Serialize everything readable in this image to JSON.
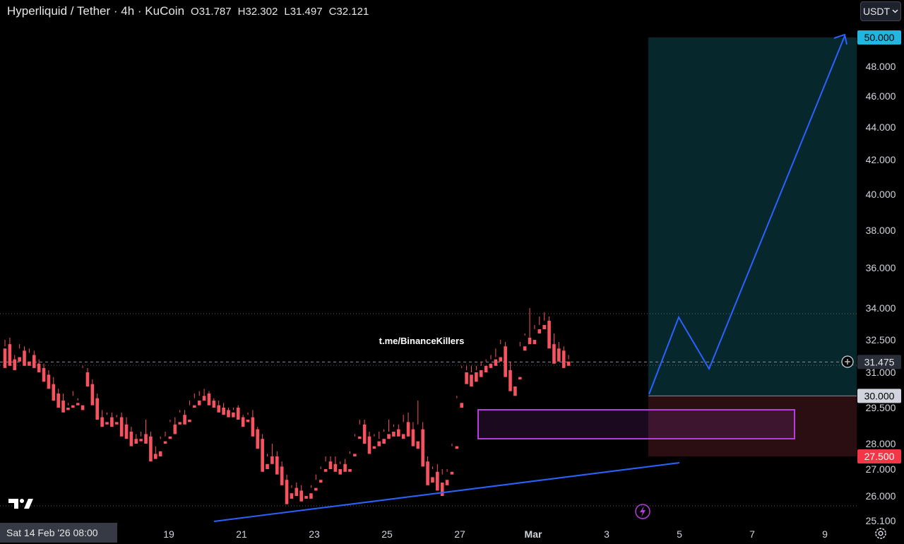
{
  "header": {
    "title": "Hyperliquid / Tether · 4h · KuCoin",
    "ohlc": [
      {
        "key": "O",
        "value": "31.787"
      },
      {
        "key": "H",
        "value": "32.302"
      },
      {
        "key": "L",
        "value": "31.497"
      },
      {
        "key": "C",
        "value": "32.121"
      }
    ]
  },
  "currency": {
    "label": "USDT",
    "icon": "chevron-down-icon"
  },
  "watermark": "t.me/BinanceKillers",
  "date_pill": "Sat 14 Feb '26   08:00",
  "icons": {
    "logo": "tradingview-logo",
    "settings": "gear-icon",
    "flash": "lightning-icon",
    "crosshair": "plus-circle-icon"
  },
  "colors": {
    "up": "#ffffff",
    "down": "#f7525f",
    "line": "#2962ff",
    "zone_border": "#b53ddb",
    "profit_zone": "#06272b",
    "loss_zone": "#2a0e12",
    "target_label": "#22b5e0",
    "stop_label": "#f23645"
  },
  "chart_data": {
    "type": "candlestick",
    "title": "Hyperliquid / Tether · 4h · KuCoin",
    "ylim": [
      25.1,
      50.5
    ],
    "y_ticks": [
      "25.100",
      "26.000",
      "27.000",
      "28.000",
      "29.500",
      "31.000",
      "32.500",
      "34.000",
      "36.000",
      "38.000",
      "40.000",
      "42.000",
      "44.000",
      "46.000",
      "48.000"
    ],
    "x_ticks": [
      "19",
      "21",
      "23",
      "25",
      "27",
      "Mar",
      "3",
      "5",
      "7",
      "9"
    ],
    "price_labels": [
      {
        "text": "50.000",
        "value": 50.0,
        "role": "target"
      },
      {
        "text": "31.475",
        "value": 31.475,
        "role": "current"
      },
      {
        "text": "30.000",
        "value": 30.0,
        "role": "entry"
      },
      {
        "text": "27.500",
        "value": 27.5,
        "role": "stop"
      }
    ],
    "candles": [
      [
        32.1,
        32.5,
        32.2,
        31.2
      ],
      [
        32.3,
        32.6,
        32.0,
        31.3
      ],
      [
        31.6,
        31.8,
        31.3,
        31.1
      ],
      [
        31.7,
        32.3,
        32.1,
        31.5
      ],
      [
        32.0,
        32.2,
        31.5,
        31.3
      ],
      [
        31.5,
        32.1,
        31.9,
        31.3
      ],
      [
        31.8,
        32.0,
        31.4,
        31.2
      ],
      [
        31.4,
        31.6,
        31.2,
        31.0
      ],
      [
        31.2,
        31.4,
        30.8,
        30.6
      ],
      [
        30.9,
        31.1,
        30.5,
        30.3
      ],
      [
        30.5,
        30.8,
        30.2,
        29.8
      ],
      [
        30.1,
        30.3,
        29.8,
        29.5
      ],
      [
        29.8,
        30.1,
        29.5,
        29.3
      ],
      [
        29.5,
        29.7,
        29.6,
        29.4
      ],
      [
        29.6,
        30.2,
        30.0,
        29.5
      ],
      [
        29.7,
        29.9,
        29.8,
        29.6
      ],
      [
        29.6,
        31.3,
        31.2,
        29.4
      ],
      [
        31.0,
        31.2,
        30.6,
        30.4
      ],
      [
        30.5,
        30.7,
        29.8,
        29.6
      ],
      [
        29.9,
        30.1,
        29.2,
        29.0
      ],
      [
        29.1,
        29.4,
        29.0,
        28.7
      ],
      [
        28.9,
        29.3,
        29.2,
        28.8
      ],
      [
        29.1,
        29.3,
        28.9,
        28.7
      ],
      [
        28.9,
        29.2,
        29.1,
        28.8
      ],
      [
        29.1,
        29.3,
        28.8,
        28.3
      ],
      [
        28.8,
        29.1,
        28.4,
        28.2
      ],
      [
        28.5,
        28.7,
        28.1,
        27.9
      ],
      [
        28.2,
        28.4,
        28.2,
        28.0
      ],
      [
        28.2,
        28.5,
        28.3,
        28.1
      ],
      [
        28.4,
        29.0,
        28.2,
        28.0
      ],
      [
        28.3,
        28.5,
        27.6,
        27.3
      ],
      [
        27.6,
        27.9,
        27.6,
        27.4
      ],
      [
        27.7,
        28.3,
        28.2,
        27.5
      ],
      [
        28.1,
        28.5,
        28.3,
        28.0
      ],
      [
        28.3,
        29.0,
        28.9,
        28.2
      ],
      [
        28.8,
        29.1,
        28.8,
        28.4
      ],
      [
        28.9,
        29.4,
        29.3,
        28.8
      ],
      [
        29.2,
        29.4,
        29.0,
        28.8
      ],
      [
        29.0,
        29.8,
        29.6,
        28.9
      ],
      [
        29.6,
        30.1,
        29.9,
        29.5
      ],
      [
        29.8,
        30.2,
        30.0,
        29.6
      ],
      [
        30.0,
        30.3,
        30.0,
        29.8
      ],
      [
        30.1,
        30.2,
        29.8,
        29.6
      ],
      [
        29.8,
        29.9,
        29.6,
        29.5
      ],
      [
        29.6,
        29.8,
        29.5,
        29.3
      ],
      [
        29.5,
        29.7,
        29.4,
        29.2
      ],
      [
        29.4,
        29.5,
        29.3,
        29.1
      ],
      [
        29.3,
        29.5,
        29.4,
        29.1
      ],
      [
        29.5,
        29.6,
        29.2,
        29.0
      ],
      [
        29.1,
        29.2,
        28.9,
        28.7
      ],
      [
        29.0,
        29.3,
        29.2,
        28.9
      ],
      [
        29.1,
        29.4,
        28.5,
        28.3
      ],
      [
        28.6,
        28.7,
        28.0,
        27.8
      ],
      [
        28.2,
        28.4,
        27.1,
        26.9
      ],
      [
        27.2,
        27.6,
        27.5,
        27.0
      ],
      [
        27.5,
        28.0,
        27.5,
        27.2
      ],
      [
        27.5,
        27.7,
        27.0,
        26.8
      ],
      [
        27.1,
        27.3,
        26.6,
        26.4
      ],
      [
        26.6,
        26.8,
        26.0,
        25.7
      ],
      [
        26.1,
        26.4,
        26.3,
        25.9
      ],
      [
        26.3,
        26.5,
        26.2,
        26.0
      ],
      [
        26.2,
        26.4,
        26.0,
        25.8
      ],
      [
        26.0,
        26.2,
        26.2,
        25.9
      ],
      [
        26.1,
        26.4,
        26.3,
        25.9
      ],
      [
        26.3,
        26.8,
        26.6,
        26.2
      ],
      [
        26.6,
        27.1,
        27.0,
        26.5
      ],
      [
        27.0,
        27.5,
        27.3,
        26.9
      ],
      [
        27.3,
        27.5,
        27.2,
        27.0
      ],
      [
        27.2,
        27.5,
        27.0,
        26.9
      ],
      [
        27.0,
        27.3,
        27.2,
        26.8
      ],
      [
        27.2,
        27.4,
        27.0,
        26.9
      ],
      [
        27.0,
        27.7,
        27.6,
        26.9
      ],
      [
        27.6,
        28.4,
        28.3,
        27.5
      ],
      [
        28.3,
        29.0,
        28.8,
        28.2
      ],
      [
        28.8,
        29.0,
        28.2,
        28.0
      ],
      [
        28.3,
        28.5,
        27.8,
        27.6
      ],
      [
        27.9,
        28.4,
        28.3,
        27.8
      ],
      [
        28.1,
        28.5,
        28.2,
        27.9
      ],
      [
        28.2,
        28.6,
        28.5,
        28.0
      ],
      [
        28.4,
        29.0,
        28.5,
        28.2
      ],
      [
        28.5,
        28.8,
        28.7,
        28.3
      ],
      [
        28.6,
        28.8,
        28.5,
        28.3
      ],
      [
        28.4,
        29.2,
        28.9,
        28.2
      ],
      [
        28.9,
        29.3,
        28.7,
        28.3
      ],
      [
        28.6,
        28.9,
        28.1,
        27.9
      ],
      [
        28.1,
        29.8,
        28.8,
        27.8
      ],
      [
        28.6,
        28.9,
        27.3,
        27.1
      ],
      [
        27.3,
        27.5,
        26.6,
        26.4
      ],
      [
        26.7,
        27.1,
        27.0,
        26.5
      ],
      [
        26.9,
        27.2,
        26.6,
        26.2
      ],
      [
        26.5,
        27.0,
        26.8,
        26.0
      ],
      [
        26.6,
        27.0,
        26.9,
        26.4
      ],
      [
        26.9,
        28.0,
        27.9,
        26.8
      ],
      [
        27.9,
        30.0,
        29.9,
        27.8
      ],
      [
        29.7,
        31.3,
        31.2,
        29.5
      ],
      [
        31.0,
        31.3,
        31.1,
        30.5
      ],
      [
        30.9,
        31.3,
        31.0,
        30.4
      ],
      [
        31.0,
        31.3,
        31.1,
        30.6
      ],
      [
        31.1,
        31.5,
        31.3,
        30.8
      ],
      [
        31.3,
        31.6,
        31.5,
        31.0
      ],
      [
        31.4,
        31.8,
        31.6,
        31.2
      ],
      [
        31.6,
        32.1,
        31.7,
        31.3
      ],
      [
        31.7,
        32.5,
        32.3,
        31.5
      ],
      [
        32.2,
        32.4,
        31.1,
        30.8
      ],
      [
        31.1,
        31.5,
        30.4,
        30.2
      ],
      [
        30.4,
        30.8,
        30.8,
        30.0
      ],
      [
        30.8,
        32.4,
        32.2,
        30.7
      ],
      [
        32.2,
        32.8,
        32.7,
        32.0
      ],
      [
        32.6,
        34.0,
        32.5,
        32.3
      ],
      [
        32.5,
        33.2,
        33.0,
        32.3
      ],
      [
        33.0,
        33.6,
        33.2,
        32.8
      ],
      [
        33.2,
        33.8,
        33.4,
        33.0
      ],
      [
        33.4,
        33.6,
        32.3,
        32.1
      ],
      [
        32.3,
        32.8,
        32.1,
        31.4
      ],
      [
        32.1,
        32.4,
        32.0,
        31.5
      ],
      [
        32.0,
        32.2,
        31.5,
        31.2
      ],
      [
        31.5,
        31.8,
        31.6,
        31.3
      ]
    ]
  }
}
